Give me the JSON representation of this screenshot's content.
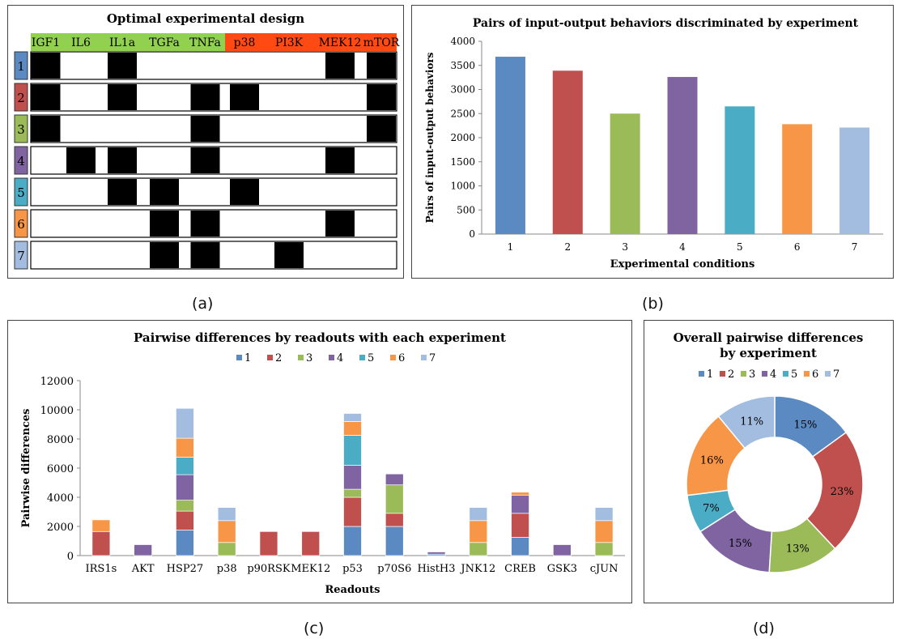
{
  "colors": {
    "s1": "#5b8ac2",
    "s2": "#c0504d",
    "s3": "#9bbb59",
    "s4": "#8064a2",
    "s5": "#4bacc6",
    "s6": "#f79646",
    "s7": "#a3bde0",
    "stimuli_bg": "#92d050",
    "inhibitors_bg": "#ff4b13"
  },
  "panel_labels": {
    "a": "(a)",
    "b": "(b)",
    "c": "(c)",
    "d": "(d)"
  },
  "design": {
    "title": "Optimal experimental design",
    "columns": [
      "IGF1",
      "IL6",
      "IL1a",
      "TGFa",
      "TNFa",
      "p38",
      "PI3K",
      "MEK12",
      "mTOR"
    ],
    "column_groups": [
      "stimulus",
      "stimulus",
      "stimulus",
      "stimulus",
      "stimulus",
      "inhibitor",
      "inhibitor",
      "inhibitor",
      "inhibitor"
    ],
    "rows": [
      {
        "label": "1",
        "cells": [
          1,
          0,
          1,
          0,
          0,
          0,
          0,
          1,
          1
        ]
      },
      {
        "label": "2",
        "cells": [
          1,
          0,
          1,
          0,
          1,
          1,
          0,
          0,
          1
        ]
      },
      {
        "label": "3",
        "cells": [
          1,
          0,
          0,
          0,
          1,
          0,
          0,
          0,
          1
        ]
      },
      {
        "label": "4",
        "cells": [
          0,
          1,
          1,
          0,
          1,
          0,
          0,
          1,
          0
        ]
      },
      {
        "label": "5",
        "cells": [
          0,
          0,
          1,
          1,
          0,
          1,
          0,
          0,
          0
        ]
      },
      {
        "label": "6",
        "cells": [
          0,
          0,
          0,
          1,
          1,
          0,
          0,
          1,
          0
        ]
      },
      {
        "label": "7",
        "cells": [
          0,
          0,
          0,
          1,
          1,
          0,
          1,
          0,
          0
        ]
      }
    ]
  },
  "chart_data": [
    {
      "type": "bar",
      "title": "Pairs of input-output behaviors discriminated  by experiment",
      "xlabel": "Experimental conditions",
      "ylabel": "Pairs of input-output behaviors",
      "categories": [
        "1",
        "2",
        "3",
        "4",
        "5",
        "6",
        "7"
      ],
      "values": [
        3680,
        3390,
        2500,
        3260,
        2650,
        2280,
        2210
      ],
      "ylim": [
        0,
        4000
      ],
      "yticks": [
        "0",
        "500",
        "1000",
        "1500",
        "2000",
        "2500",
        "3000",
        "3500",
        "4000"
      ],
      "grid": false
    },
    {
      "type": "bar",
      "stacked": true,
      "title": "Pairwise differences by readouts with each experiment",
      "xlabel": "Readouts",
      "ylabel": "Pairwise differences",
      "legend": "top",
      "categories": [
        "IRS1s",
        "AKT",
        "HSP27",
        "p38",
        "p90RSK",
        "MEK12",
        "p53",
        "p70S6",
        "HistH3",
        "JNK12",
        "CREB",
        "GSK3",
        "cJUN"
      ],
      "ylim": [
        0,
        12000
      ],
      "yticks": [
        "0",
        "2000",
        "4000",
        "6000",
        "8000",
        "10000",
        "12000"
      ],
      "grid": false,
      "series": [
        {
          "name": "1",
          "values": [
            0,
            0,
            1750,
            0,
            0,
            0,
            2000,
            2000,
            100,
            0,
            1250,
            0,
            0
          ]
        },
        {
          "name": "2",
          "values": [
            1650,
            0,
            1300,
            0,
            1650,
            1650,
            2000,
            900,
            0,
            0,
            1650,
            0,
            0
          ]
        },
        {
          "name": "3",
          "values": [
            0,
            0,
            750,
            900,
            0,
            0,
            550,
            1950,
            0,
            900,
            0,
            0,
            900
          ]
        },
        {
          "name": "4",
          "values": [
            0,
            750,
            1750,
            0,
            0,
            0,
            1650,
            750,
            150,
            0,
            1250,
            750,
            0
          ]
        },
        {
          "name": "5",
          "values": [
            0,
            0,
            1200,
            0,
            0,
            0,
            2050,
            0,
            0,
            0,
            0,
            0,
            0
          ]
        },
        {
          "name": "6",
          "values": [
            800,
            0,
            1300,
            1500,
            0,
            0,
            950,
            0,
            0,
            1500,
            200,
            0,
            1500
          ]
        },
        {
          "name": "7",
          "values": [
            0,
            0,
            2050,
            900,
            0,
            0,
            550,
            0,
            0,
            900,
            0,
            0,
            900
          ]
        }
      ]
    },
    {
      "type": "pie",
      "donut": true,
      "title": [
        "Overall pairwise differences",
        "by experiment"
      ],
      "legend": "top",
      "labels": [
        "1",
        "2",
        "3",
        "4",
        "5",
        "6",
        "7"
      ],
      "values": [
        15,
        23,
        13,
        15,
        7,
        16,
        11
      ],
      "value_labels": [
        "15%",
        "23%",
        "13%",
        "15%",
        "7%",
        "16%",
        "11%"
      ]
    }
  ]
}
